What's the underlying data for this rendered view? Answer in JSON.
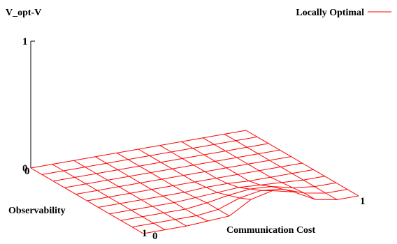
{
  "chart_data": {
    "type": "surface",
    "zlabel": "V_opt-V",
    "xlabel": "Observability",
    "ylabel": "Communication Cost",
    "zlim": [
      0,
      1
    ],
    "x_ticks": [
      "0",
      "1"
    ],
    "y_ticks": [
      "0",
      "1"
    ],
    "z_ticks": [
      "0",
      "1"
    ],
    "grid": true,
    "legend": {
      "position": "top-right",
      "entries": [
        {
          "label": "Locally Optimal",
          "color": "#ff0000"
        }
      ]
    },
    "series": [
      {
        "name": "Locally Optimal",
        "color": "#ff0000",
        "x": [
          0,
          0.1,
          0.2,
          0.3,
          0.4,
          0.5,
          0.6,
          0.7,
          0.8,
          0.9,
          1.0
        ],
        "y": [
          0,
          0.1,
          0.2,
          0.3,
          0.4,
          0.5,
          0.6,
          0.7,
          0.8,
          0.9,
          1.0
        ],
        "z": [
          [
            0,
            0,
            0,
            0,
            0,
            0,
            0,
            0,
            0,
            0,
            0
          ],
          [
            0,
            0,
            0,
            0,
            0,
            0,
            0,
            0,
            0,
            0,
            0
          ],
          [
            0,
            0,
            0,
            0,
            0,
            0,
            0,
            0,
            0,
            0,
            0
          ],
          [
            0,
            0,
            0,
            0,
            0,
            0,
            0,
            0,
            0,
            0,
            0
          ],
          [
            0,
            0,
            0,
            0,
            0,
            0,
            0,
            0,
            0,
            0,
            0
          ],
          [
            0,
            0,
            0,
            0,
            0,
            0,
            0,
            0,
            0,
            0,
            0
          ],
          [
            0,
            0,
            0,
            0,
            0,
            0.01,
            0.01,
            0,
            0,
            0,
            0
          ],
          [
            0,
            0,
            0,
            0,
            0.01,
            0.02,
            0.03,
            0.02,
            0.01,
            0,
            0
          ],
          [
            0,
            0,
            0,
            0,
            0.02,
            0.05,
            0.07,
            0.06,
            0.02,
            0,
            0
          ],
          [
            0,
            0,
            0,
            0,
            0.02,
            0.08,
            0.11,
            0.09,
            0.03,
            0,
            0
          ],
          [
            0,
            0,
            0,
            0.01,
            0.02,
            0.12,
            0.16,
            0.12,
            0.03,
            0,
            0
          ]
        ]
      }
    ]
  }
}
